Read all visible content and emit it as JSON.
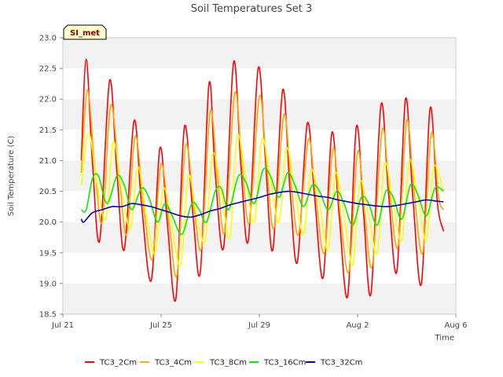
{
  "chart_data": {
    "type": "line",
    "title": "Soil Temperatures Set 3",
    "xlabel": "Time",
    "ylabel": "Soil Temperature (C)",
    "site_badge": "SI_met",
    "x_start": "Jul 21",
    "x_end": "Aug 6",
    "x_ticks": [
      {
        "day": 0,
        "label": "Jul 21"
      },
      {
        "day": 4,
        "label": "Jul 25"
      },
      {
        "day": 8,
        "label": "Jul 29"
      },
      {
        "day": 12,
        "label": "Aug 2"
      },
      {
        "day": 16,
        "label": "Aug 6"
      }
    ],
    "ylim": [
      18.5,
      23.0
    ],
    "y_ticks": [
      18.5,
      19.0,
      19.5,
      20.0,
      20.5,
      21.0,
      21.5,
      22.0,
      22.5,
      23.0
    ],
    "grid": true,
    "band_colors": [
      "#f2f2f2",
      "#ffffff"
    ],
    "legend_position": "bottom-center",
    "series": [
      {
        "name": "TC3_2Cm",
        "color": "#ff0000",
        "points": [
          [
            0.75,
            21.0
          ],
          [
            0.95,
            22.65
          ],
          [
            1.2,
            21.0
          ],
          [
            1.5,
            19.7
          ],
          [
            1.9,
            22.3
          ],
          [
            2.2,
            20.8
          ],
          [
            2.5,
            19.55
          ],
          [
            2.9,
            21.65
          ],
          [
            3.2,
            20.3
          ],
          [
            3.6,
            19.05
          ],
          [
            3.95,
            21.2
          ],
          [
            4.25,
            20.0
          ],
          [
            4.6,
            18.75
          ],
          [
            4.95,
            21.55
          ],
          [
            5.3,
            20.1
          ],
          [
            5.6,
            19.2
          ],
          [
            5.95,
            22.25
          ],
          [
            6.2,
            20.8
          ],
          [
            6.55,
            19.6
          ],
          [
            6.95,
            22.6
          ],
          [
            7.25,
            20.9
          ],
          [
            7.55,
            19.7
          ],
          [
            7.95,
            22.5
          ],
          [
            8.25,
            21.0
          ],
          [
            8.55,
            19.55
          ],
          [
            8.95,
            22.15
          ],
          [
            9.25,
            20.5
          ],
          [
            9.55,
            19.35
          ],
          [
            9.95,
            21.6
          ],
          [
            10.25,
            20.4
          ],
          [
            10.6,
            19.1
          ],
          [
            10.95,
            21.45
          ],
          [
            11.25,
            20.1
          ],
          [
            11.6,
            18.8
          ],
          [
            11.95,
            21.55
          ],
          [
            12.25,
            20.1
          ],
          [
            12.55,
            18.85
          ],
          [
            12.95,
            21.9
          ],
          [
            13.25,
            20.5
          ],
          [
            13.6,
            19.2
          ],
          [
            13.95,
            22.0
          ],
          [
            14.25,
            20.4
          ],
          [
            14.6,
            19.0
          ],
          [
            14.95,
            21.85
          ],
          [
            15.25,
            20.3
          ],
          [
            15.5,
            19.85
          ]
        ]
      },
      {
        "name": "TC3_4Cm",
        "color": "#ffa500",
        "points": [
          [
            0.75,
            20.8
          ],
          [
            1.0,
            22.15
          ],
          [
            1.3,
            20.9
          ],
          [
            1.6,
            20.0
          ],
          [
            1.95,
            21.9
          ],
          [
            2.3,
            20.7
          ],
          [
            2.6,
            19.8
          ],
          [
            2.95,
            21.4
          ],
          [
            3.3,
            20.2
          ],
          [
            3.65,
            19.4
          ],
          [
            4.0,
            20.95
          ],
          [
            4.35,
            19.9
          ],
          [
            4.65,
            19.15
          ],
          [
            5.0,
            21.25
          ],
          [
            5.35,
            20.2
          ],
          [
            5.65,
            19.6
          ],
          [
            6.0,
            21.8
          ],
          [
            6.3,
            20.7
          ],
          [
            6.6,
            19.85
          ],
          [
            7.0,
            22.1
          ],
          [
            7.3,
            20.9
          ],
          [
            7.6,
            20.0
          ],
          [
            8.0,
            22.05
          ],
          [
            8.3,
            20.9
          ],
          [
            8.6,
            19.9
          ],
          [
            9.0,
            21.75
          ],
          [
            9.3,
            20.6
          ],
          [
            9.6,
            19.8
          ],
          [
            10.0,
            21.35
          ],
          [
            10.3,
            20.4
          ],
          [
            10.65,
            19.5
          ],
          [
            11.0,
            21.2
          ],
          [
            11.3,
            20.1
          ],
          [
            11.65,
            19.2
          ],
          [
            12.0,
            21.15
          ],
          [
            12.3,
            20.1
          ],
          [
            12.6,
            19.3
          ],
          [
            13.0,
            21.5
          ],
          [
            13.3,
            20.5
          ],
          [
            13.65,
            19.6
          ],
          [
            14.0,
            21.65
          ],
          [
            14.3,
            20.5
          ],
          [
            14.65,
            19.5
          ],
          [
            15.0,
            21.45
          ],
          [
            15.3,
            20.4
          ],
          [
            15.5,
            20.2
          ]
        ]
      },
      {
        "name": "TC3_8Cm",
        "color": "#ffff00",
        "points": [
          [
            0.75,
            20.6
          ],
          [
            1.05,
            21.45
          ],
          [
            1.4,
            20.6
          ],
          [
            1.75,
            20.05
          ],
          [
            2.05,
            21.3
          ],
          [
            2.4,
            20.5
          ],
          [
            2.75,
            19.9
          ],
          [
            3.05,
            20.9
          ],
          [
            3.4,
            20.1
          ],
          [
            3.75,
            19.5
          ],
          [
            4.1,
            20.55
          ],
          [
            4.45,
            19.9
          ],
          [
            4.8,
            19.3
          ],
          [
            5.1,
            20.75
          ],
          [
            5.45,
            20.1
          ],
          [
            5.8,
            19.7
          ],
          [
            6.1,
            21.1
          ],
          [
            6.45,
            20.5
          ],
          [
            6.8,
            19.75
          ],
          [
            7.1,
            21.4
          ],
          [
            7.45,
            20.7
          ],
          [
            7.8,
            20.0
          ],
          [
            8.1,
            21.35
          ],
          [
            8.45,
            20.7
          ],
          [
            8.8,
            20.0
          ],
          [
            9.1,
            21.2
          ],
          [
            9.45,
            20.5
          ],
          [
            9.8,
            19.8
          ],
          [
            10.1,
            20.85
          ],
          [
            10.45,
            20.3
          ],
          [
            10.8,
            19.55
          ],
          [
            11.1,
            20.8
          ],
          [
            11.45,
            20.1
          ],
          [
            11.8,
            19.3
          ],
          [
            12.1,
            20.65
          ],
          [
            12.45,
            20.1
          ],
          [
            12.8,
            19.5
          ],
          [
            13.1,
            20.95
          ],
          [
            13.45,
            20.3
          ],
          [
            13.8,
            19.7
          ],
          [
            14.1,
            21.0
          ],
          [
            14.45,
            20.4
          ],
          [
            14.8,
            19.7
          ],
          [
            15.1,
            20.9
          ],
          [
            15.5,
            20.5
          ]
        ]
      },
      {
        "name": "TC3_16Cm",
        "color": "#00ee00",
        "points": [
          [
            0.75,
            20.2
          ],
          [
            0.95,
            20.2
          ],
          [
            1.2,
            20.7
          ],
          [
            1.45,
            20.75
          ],
          [
            1.8,
            20.3
          ],
          [
            2.2,
            20.75
          ],
          [
            2.5,
            20.6
          ],
          [
            2.8,
            20.2
          ],
          [
            3.2,
            20.55
          ],
          [
            3.5,
            20.4
          ],
          [
            3.85,
            20.0
          ],
          [
            4.15,
            20.3
          ],
          [
            4.45,
            20.1
          ],
          [
            4.85,
            19.8
          ],
          [
            5.25,
            20.3
          ],
          [
            5.55,
            20.2
          ],
          [
            5.85,
            20.0
          ],
          [
            6.2,
            20.5
          ],
          [
            6.45,
            20.55
          ],
          [
            6.75,
            20.2
          ],
          [
            7.15,
            20.75
          ],
          [
            7.45,
            20.65
          ],
          [
            7.8,
            20.3
          ],
          [
            8.15,
            20.85
          ],
          [
            8.45,
            20.75
          ],
          [
            8.8,
            20.4
          ],
          [
            9.15,
            20.8
          ],
          [
            9.45,
            20.6
          ],
          [
            9.8,
            20.25
          ],
          [
            10.15,
            20.6
          ],
          [
            10.45,
            20.5
          ],
          [
            10.8,
            20.2
          ],
          [
            11.15,
            20.5
          ],
          [
            11.45,
            20.3
          ],
          [
            11.8,
            19.95
          ],
          [
            12.15,
            20.4
          ],
          [
            12.45,
            20.3
          ],
          [
            12.8,
            19.95
          ],
          [
            13.15,
            20.5
          ],
          [
            13.45,
            20.4
          ],
          [
            13.8,
            20.05
          ],
          [
            14.15,
            20.6
          ],
          [
            14.45,
            20.45
          ],
          [
            14.8,
            20.1
          ],
          [
            15.15,
            20.55
          ],
          [
            15.5,
            20.5
          ]
        ]
      },
      {
        "name": "TC3_32Cm",
        "color": "#0000cc",
        "points": [
          [
            0.75,
            20.05
          ],
          [
            0.85,
            20.0
          ],
          [
            1.2,
            20.15
          ],
          [
            1.6,
            20.2
          ],
          [
            2.0,
            20.25
          ],
          [
            2.4,
            20.25
          ],
          [
            2.8,
            20.3
          ],
          [
            3.2,
            20.28
          ],
          [
            3.6,
            20.25
          ],
          [
            4.0,
            20.2
          ],
          [
            4.4,
            20.15
          ],
          [
            4.8,
            20.1
          ],
          [
            5.2,
            20.08
          ],
          [
            5.6,
            20.12
          ],
          [
            6.0,
            20.18
          ],
          [
            6.4,
            20.22
          ],
          [
            6.8,
            20.28
          ],
          [
            7.2,
            20.32
          ],
          [
            7.6,
            20.36
          ],
          [
            8.0,
            20.4
          ],
          [
            8.4,
            20.45
          ],
          [
            8.8,
            20.48
          ],
          [
            9.2,
            20.5
          ],
          [
            9.6,
            20.48
          ],
          [
            10.0,
            20.45
          ],
          [
            10.4,
            20.42
          ],
          [
            10.8,
            20.4
          ],
          [
            11.2,
            20.36
          ],
          [
            11.6,
            20.33
          ],
          [
            12.0,
            20.3
          ],
          [
            12.4,
            20.28
          ],
          [
            12.8,
            20.26
          ],
          [
            13.2,
            20.25
          ],
          [
            13.6,
            20.27
          ],
          [
            14.0,
            20.3
          ],
          [
            14.4,
            20.33
          ],
          [
            14.8,
            20.36
          ],
          [
            15.2,
            20.34
          ],
          [
            15.5,
            20.33
          ]
        ]
      }
    ]
  }
}
